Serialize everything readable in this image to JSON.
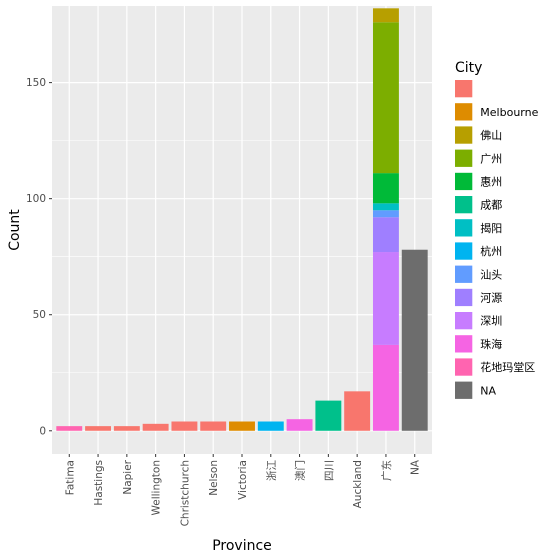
{
  "chart_data": {
    "type": "bar",
    "stacked": true,
    "xlabel": "Province",
    "ylabel": "Count",
    "ylim": [
      -10,
      183
    ],
    "yticks": [
      0,
      50,
      100,
      150
    ],
    "grid": true,
    "legend_position": "right",
    "categories": [
      "Fatima",
      "Hastings",
      "Napier",
      "Wellington",
      "Christchurch",
      "Nelson",
      "Victoria",
      "浙江",
      "澳门",
      "四川",
      "Auckland",
      "广东",
      "NA"
    ],
    "legend": {
      "title": "City",
      "entries": [
        {
          "name": "",
          "color": "#F8766D"
        },
        {
          "name": "Melbourne",
          "color": "#DE8C00"
        },
        {
          "name": "佛山",
          "color": "#B79F00"
        },
        {
          "name": "广州",
          "color": "#7CAE00"
        },
        {
          "name": "惠州",
          "color": "#00BA38"
        },
        {
          "name": "成都",
          "color": "#00C08B"
        },
        {
          "name": "揭阳",
          "color": "#00BFC4"
        },
        {
          "name": "杭州",
          "color": "#00B4F0"
        },
        {
          "name": "汕头",
          "color": "#619CFF"
        },
        {
          "name": "河源",
          "color": "#9F7FFF"
        },
        {
          "name": "深圳",
          "color": "#C77CFF"
        },
        {
          "name": "珠海",
          "color": "#F564E3"
        },
        {
          "name": "花地玛堂区",
          "color": "#FF64B0"
        },
        {
          "name": "NA",
          "color": "#6D6D6D"
        }
      ]
    },
    "bars": [
      {
        "category": "Fatima",
        "segments": [
          {
            "city": "花地玛堂区",
            "value": 2
          }
        ]
      },
      {
        "category": "Hastings",
        "segments": [
          {
            "city": "",
            "value": 2
          }
        ]
      },
      {
        "category": "Napier",
        "segments": [
          {
            "city": "",
            "value": 2
          }
        ]
      },
      {
        "category": "Wellington",
        "segments": [
          {
            "city": "",
            "value": 3
          }
        ]
      },
      {
        "category": "Christchurch",
        "segments": [
          {
            "city": "",
            "value": 4
          }
        ]
      },
      {
        "category": "Nelson",
        "segments": [
          {
            "city": "",
            "value": 4
          }
        ]
      },
      {
        "category": "Victoria",
        "segments": [
          {
            "city": "Melbourne",
            "value": 4
          }
        ]
      },
      {
        "category": "浙江",
        "segments": [
          {
            "city": "杭州",
            "value": 4
          }
        ]
      },
      {
        "category": "澳门",
        "segments": [
          {
            "city": "珠海",
            "value": 5
          }
        ]
      },
      {
        "category": "四川",
        "segments": [
          {
            "city": "成都",
            "value": 13
          }
        ]
      },
      {
        "category": "Auckland",
        "segments": [
          {
            "city": "",
            "value": 17
          }
        ]
      },
      {
        "category": "广东",
        "segments": [
          {
            "city": "珠海",
            "value": 37
          },
          {
            "city": "深圳",
            "value": 40
          },
          {
            "city": "河源",
            "value": 15
          },
          {
            "city": "汕头",
            "value": 3
          },
          {
            "city": "揭阳",
            "value": 3
          },
          {
            "city": "惠州",
            "value": 13
          },
          {
            "city": "广州",
            "value": 65
          },
          {
            "city": "佛山",
            "value": 6
          }
        ]
      },
      {
        "category": "NA",
        "segments": [
          {
            "city": "NA",
            "value": 78
          }
        ]
      }
    ]
  }
}
